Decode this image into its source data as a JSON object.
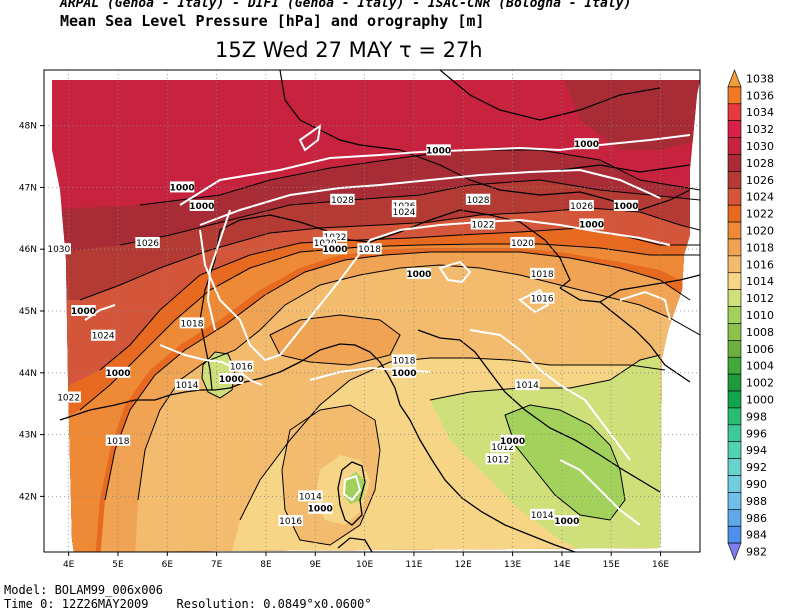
{
  "header": {
    "line1": "ARPAL (Genoa - Italy)  -  DIFI (Genoa - Italy)  -  ISAC-CNR (Bologna - Italy)",
    "line2": "Mean Sea Level Pressure [hPa] and orography [m]",
    "line3": "15Z Wed 27 MAY  τ = 27h"
  },
  "map": {
    "lon_range": [
      3.5,
      16.8
    ],
    "lat_range": [
      41.1,
      48.9
    ],
    "lon_ticks": [
      "4E",
      "5E",
      "6E",
      "7E",
      "8E",
      "9E",
      "10E",
      "11E",
      "12E",
      "13E",
      "14E",
      "15E",
      "16E"
    ],
    "lat_ticks": [
      "42N",
      "43N",
      "44N",
      "45N",
      "46N",
      "47N",
      "48N"
    ],
    "gridlines": true,
    "isobar_labels": [
      {
        "text": "1030",
        "lon": 3.8,
        "lat": 46.0
      },
      {
        "text": "1028",
        "lon": 9.55,
        "lat": 46.8
      },
      {
        "text": "1028",
        "lon": 12.3,
        "lat": 46.8
      },
      {
        "text": "1026",
        "lon": 5.6,
        "lat": 46.1
      },
      {
        "text": "1026",
        "lon": 10.8,
        "lat": 46.7
      },
      {
        "text": "1026",
        "lon": 14.4,
        "lat": 46.7
      },
      {
        "text": "1024",
        "lon": 10.8,
        "lat": 46.6
      },
      {
        "text": "1024",
        "lon": 4.7,
        "lat": 44.6
      },
      {
        "text": "1022",
        "lon": 9.4,
        "lat": 46.2
      },
      {
        "text": "1022",
        "lon": 12.4,
        "lat": 46.4
      },
      {
        "text": "1022",
        "lon": 4.0,
        "lat": 43.6
      },
      {
        "text": "1020",
        "lon": 9.2,
        "lat": 46.1
      },
      {
        "text": "1020",
        "lon": 13.2,
        "lat": 46.1
      },
      {
        "text": "1018",
        "lon": 10.1,
        "lat": 46.0
      },
      {
        "text": "1018",
        "lon": 13.6,
        "lat": 45.6
      },
      {
        "text": "1018",
        "lon": 6.5,
        "lat": 44.8
      },
      {
        "text": "1018",
        "lon": 10.8,
        "lat": 44.2
      },
      {
        "text": "1018",
        "lon": 5.0,
        "lat": 42.9
      },
      {
        "text": "1016",
        "lon": 13.6,
        "lat": 45.2
      },
      {
        "text": "1016",
        "lon": 7.5,
        "lat": 44.1
      },
      {
        "text": "1016",
        "lon": 8.5,
        "lat": 41.6
      },
      {
        "text": "1014",
        "lon": 6.4,
        "lat": 43.8
      },
      {
        "text": "1014",
        "lon": 13.3,
        "lat": 43.8
      },
      {
        "text": "1014",
        "lon": 8.9,
        "lat": 42.0
      },
      {
        "text": "1014",
        "lon": 13.6,
        "lat": 41.7
      },
      {
        "text": "1012",
        "lon": 12.8,
        "lat": 42.8
      },
      {
        "text": "1012",
        "lon": 12.7,
        "lat": 42.6
      }
    ],
    "orography_labels": [
      {
        "text": "1000",
        "lon": 11.5,
        "lat": 47.6
      },
      {
        "text": "1000",
        "lon": 14.5,
        "lat": 47.7
      },
      {
        "text": "1000",
        "lon": 6.3,
        "lat": 47.0
      },
      {
        "text": "1000",
        "lon": 6.7,
        "lat": 46.7
      },
      {
        "text": "1000",
        "lon": 15.3,
        "lat": 46.7
      },
      {
        "text": "1000",
        "lon": 14.6,
        "lat": 46.4
      },
      {
        "text": "1000",
        "lon": 9.4,
        "lat": 46.0
      },
      {
        "text": "1000",
        "lon": 11.1,
        "lat": 45.6
      },
      {
        "text": "1000",
        "lon": 4.3,
        "lat": 45.0
      },
      {
        "text": "1000",
        "lon": 5.0,
        "lat": 44.0
      },
      {
        "text": "1000",
        "lon": 7.3,
        "lat": 43.9
      },
      {
        "text": "1000",
        "lon": 10.8,
        "lat": 44.0
      },
      {
        "text": "1000",
        "lon": 13.0,
        "lat": 42.9
      },
      {
        "text": "1000",
        "lon": 9.1,
        "lat": 41.8
      },
      {
        "text": "1000",
        "lon": 14.1,
        "lat": 41.6
      }
    ]
  },
  "legend": {
    "levels": [
      {
        "label": "1038",
        "color": "#f39c3a"
      },
      {
        "label": "1036",
        "color": "#ee7b24"
      },
      {
        "label": "1034",
        "color": "#e63a3c"
      },
      {
        "label": "1032",
        "color": "#d8204a"
      },
      {
        "label": "1030",
        "color": "#c7233f"
      },
      {
        "label": "1028",
        "color": "#a82c35"
      },
      {
        "label": "1026",
        "color": "#b43a34"
      },
      {
        "label": "1024",
        "color": "#d4563a"
      },
      {
        "label": "1022",
        "color": "#e76a20"
      },
      {
        "label": "1020",
        "color": "#ee8a35"
      },
      {
        "label": "1018",
        "color": "#f0a352"
      },
      {
        "label": "1016",
        "color": "#f3bb6e"
      },
      {
        "label": "1014",
        "color": "#f7d587"
      },
      {
        "label": "1012",
        "color": "#cfe07b"
      },
      {
        "label": "1010",
        "color": "#a3d25c"
      },
      {
        "label": "1008",
        "color": "#8cc24a"
      },
      {
        "label": "1006",
        "color": "#6cb13f"
      },
      {
        "label": "1004",
        "color": "#3fa93a"
      },
      {
        "label": "1002",
        "color": "#1f9a3c"
      },
      {
        "label": "1000",
        "color": "#12a54b"
      },
      {
        "label": "998",
        "color": "#2bbc73"
      },
      {
        "label": "996",
        "color": "#3fc99a"
      },
      {
        "label": "994",
        "color": "#52d2b2"
      },
      {
        "label": "992",
        "color": "#66d4cc"
      },
      {
        "label": "990",
        "color": "#72cde0"
      },
      {
        "label": "988",
        "color": "#6fbfe8"
      },
      {
        "label": "986",
        "color": "#5fa9ea"
      },
      {
        "label": "984",
        "color": "#4f8fec"
      },
      {
        "label": "982",
        "color": "#7f7cef"
      }
    ]
  },
  "footer": {
    "model": "Model: BOLAM99_006x006",
    "time0": "Time 0: 12Z26MAY2009",
    "resolution": "Resolution: 0.0849°x0.0600°"
  },
  "colors": {
    "coastline": "#000000",
    "orography": "#ffffff",
    "isobar": "#000000",
    "grid": "#888888",
    "nodata": "#ffffff"
  }
}
